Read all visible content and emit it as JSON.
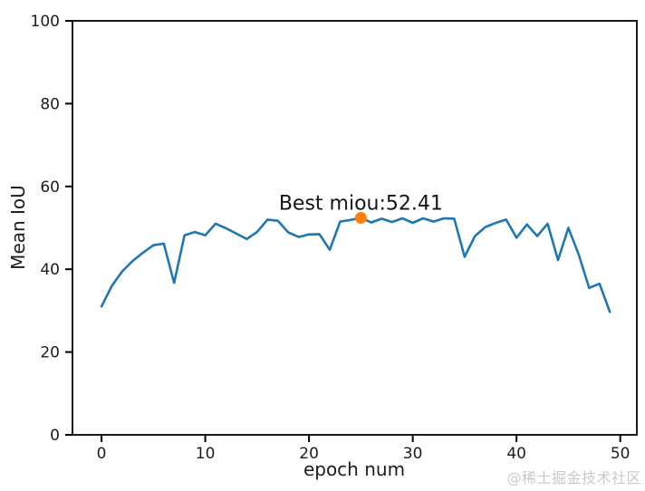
{
  "page": {
    "background": "#ffffff"
  },
  "watermark": {
    "text": "@稀土掘金技术社区",
    "color": "#c9c9c9"
  },
  "chart_data": {
    "type": "line",
    "title": "",
    "xlabel": "epoch num",
    "ylabel": "Mean IoU",
    "xlim": [
      -2.8,
      51.6
    ],
    "ylim": [
      0,
      100
    ],
    "xticks": [
      0,
      10,
      20,
      30,
      40,
      50
    ],
    "yticks": [
      0,
      20,
      40,
      60,
      80,
      100
    ],
    "grid": false,
    "legend_position": "none",
    "x": [
      0,
      1,
      2,
      3,
      4,
      5,
      6,
      7,
      8,
      9,
      10,
      11,
      12,
      13,
      14,
      15,
      16,
      17,
      18,
      19,
      20,
      21,
      22,
      23,
      24,
      25,
      26,
      27,
      28,
      29,
      30,
      31,
      32,
      33,
      34,
      35,
      36,
      37,
      38,
      39,
      40,
      41,
      42,
      43,
      44,
      45,
      46,
      47,
      48,
      49
    ],
    "series": [
      {
        "name": "Mean IoU",
        "color": "#1f77b4",
        "values": [
          31.0,
          36.0,
          39.5,
          42.0,
          44.0,
          45.8,
          46.2,
          36.7,
          48.2,
          49.0,
          48.2,
          51.0,
          49.9,
          48.6,
          47.3,
          49.0,
          52.0,
          51.7,
          48.9,
          47.8,
          48.4,
          48.5,
          44.7,
          51.5,
          51.9,
          52.41,
          51.3,
          52.2,
          51.4,
          52.3,
          51.2,
          52.3,
          51.5,
          52.3,
          52.2,
          43.0,
          48.0,
          50.2,
          51.2,
          52.0,
          47.6,
          50.8,
          48.0,
          51.0,
          42.2,
          50.0,
          43.5,
          35.5,
          36.5,
          29.7
        ]
      }
    ],
    "annotation": {
      "text": "Best miou:52.41",
      "x": 25,
      "y": 52.41,
      "marker_color": "#ff7f0e",
      "text_color": "#151515"
    },
    "axis_color": "#000000"
  }
}
